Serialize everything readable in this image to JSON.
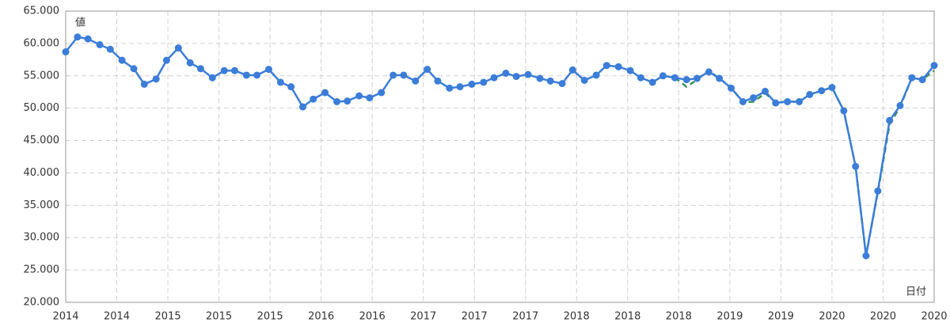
{
  "chart_data": {
    "type": "line",
    "y_label": "値",
    "x_label": "日付",
    "xlim": [
      2014.3,
      2020.93
    ],
    "xticks": [
      {
        "value": 2014.3,
        "label": "2014"
      },
      {
        "value": 2014.69,
        "label": "2014"
      },
      {
        "value": 2015.08,
        "label": "2015"
      },
      {
        "value": 2015.47,
        "label": "2015"
      },
      {
        "value": 2015.86,
        "label": "2015"
      },
      {
        "value": 2016.25,
        "label": "2016"
      },
      {
        "value": 2016.64,
        "label": "2016"
      },
      {
        "value": 2017.03,
        "label": "2017"
      },
      {
        "value": 2017.42,
        "label": "2017"
      },
      {
        "value": 2017.81,
        "label": "2017"
      },
      {
        "value": 2018.2,
        "label": "2018"
      },
      {
        "value": 2018.59,
        "label": "2018"
      },
      {
        "value": 2018.98,
        "label": "2018"
      },
      {
        "value": 2019.37,
        "label": "2019"
      },
      {
        "value": 2019.76,
        "label": "2019"
      },
      {
        "value": 2020.15,
        "label": "2020"
      },
      {
        "value": 2020.54,
        "label": "2020"
      },
      {
        "value": 2020.93,
        "label": "2020"
      }
    ],
    "ylim": [
      20,
      65
    ],
    "yticks": [
      {
        "value": 20,
        "label": "20.000"
      },
      {
        "value": 25,
        "label": "25.000"
      },
      {
        "value": 30,
        "label": "30.000"
      },
      {
        "value": 35,
        "label": "35.000"
      },
      {
        "value": 40,
        "label": "40.000"
      },
      {
        "value": 45,
        "label": "45.000"
      },
      {
        "value": 50,
        "label": "50.000"
      },
      {
        "value": 55,
        "label": "55.000"
      },
      {
        "value": 60,
        "label": "60.000"
      },
      {
        "value": 65,
        "label": "65.000"
      }
    ],
    "grid": true,
    "x": [
      2014.3,
      2014.39,
      2014.47,
      2014.56,
      2014.64,
      2014.73,
      2014.82,
      2014.9,
      2014.99,
      2015.07,
      2015.16,
      2015.25,
      2015.33,
      2015.42,
      2015.51,
      2015.59,
      2015.68,
      2015.76,
      2015.85,
      2015.94,
      2016.02,
      2016.11,
      2016.19,
      2016.28,
      2016.37,
      2016.45,
      2016.54,
      2016.62,
      2016.71,
      2016.8,
      2016.88,
      2016.97,
      2017.06,
      2017.14,
      2017.23,
      2017.31,
      2017.4,
      2017.49,
      2017.57,
      2017.66,
      2017.74,
      2017.83,
      2017.92,
      2018.0,
      2018.09,
      2018.17,
      2018.26,
      2018.35,
      2018.43,
      2018.52,
      2018.61,
      2018.69,
      2018.78,
      2018.86,
      2018.95,
      2019.04,
      2019.12,
      2019.21,
      2019.29,
      2019.38,
      2019.47,
      2019.55,
      2019.64,
      2019.72,
      2019.81,
      2019.9,
      2019.98,
      2020.07,
      2020.15,
      2020.24,
      2020.33,
      2020.41,
      2020.5,
      2020.59,
      2020.67,
      2020.76,
      2020.84,
      2020.93
    ],
    "series": [
      {
        "color": "#3a8f5a",
        "dashed": true,
        "markers": false,
        "values": [
          null,
          null,
          null,
          null,
          null,
          null,
          null,
          null,
          null,
          null,
          null,
          null,
          null,
          null,
          null,
          null,
          null,
          null,
          null,
          null,
          null,
          null,
          null,
          null,
          null,
          null,
          null,
          null,
          null,
          null,
          null,
          null,
          null,
          null,
          null,
          null,
          null,
          null,
          null,
          null,
          null,
          null,
          null,
          null,
          null,
          null,
          null,
          null,
          null,
          null,
          null,
          null,
          null,
          null,
          54.7,
          53.3,
          54.4,
          55.8,
          54.6,
          53.2,
          50.9,
          51.0,
          52.3,
          50.9,
          51.0,
          51.0,
          52.1,
          52.7,
          53.2,
          49.6,
          41.0,
          27.2,
          37.0,
          47.5,
          50.2,
          54.7,
          54.4,
          55.8
        ]
      },
      {
        "color": "#3b7dd8",
        "dashed": false,
        "markers": true,
        "values": [
          58.7,
          61.0,
          60.7,
          59.8,
          59.1,
          57.4,
          56.1,
          53.7,
          54.5,
          57.4,
          59.3,
          57.0,
          56.1,
          54.7,
          55.8,
          55.8,
          55.1,
          55.1,
          56.0,
          54.0,
          53.3,
          50.2,
          51.4,
          52.4,
          51.0,
          51.1,
          51.9,
          51.6,
          52.4,
          55.1,
          55.1,
          54.2,
          56.0,
          54.2,
          53.1,
          53.3,
          53.7,
          54.0,
          54.7,
          55.4,
          54.9,
          55.2,
          54.6,
          54.2,
          53.8,
          55.9,
          54.3,
          55.1,
          56.6,
          56.4,
          55.8,
          54.7,
          54.0,
          55.0,
          54.7,
          54.4,
          54.6,
          55.6,
          54.6,
          53.1,
          51.0,
          51.6,
          52.6,
          50.8,
          51.0,
          51.0,
          52.1,
          52.7,
          53.2,
          49.6,
          41.0,
          27.2,
          37.2,
          48.1,
          50.4,
          54.7,
          54.4,
          56.6
        ]
      }
    ]
  }
}
